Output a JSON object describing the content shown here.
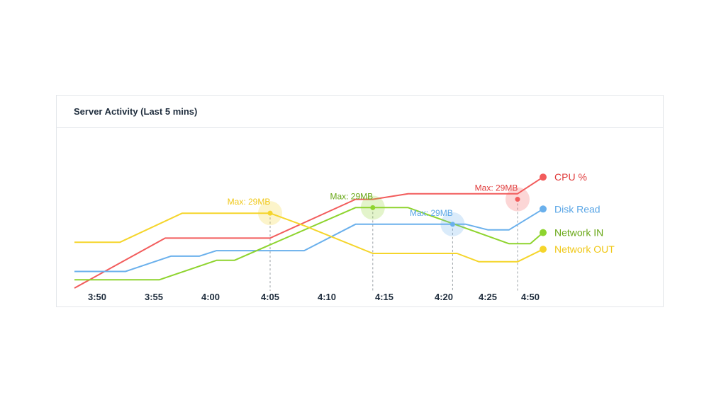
{
  "card": {
    "title": "Server Activity (Last 5 mins)"
  },
  "chart_data": {
    "type": "line",
    "title": "Server Activity (Last 5 mins)",
    "categories": [
      "3:50",
      "3:55",
      "4:00",
      "4:05",
      "4:10",
      "4:15",
      "4:20",
      "4:25",
      "4:50"
    ],
    "ylim": [
      0,
      100
    ],
    "grid": false,
    "legend": "right",
    "series": [
      {
        "name": "CPU %",
        "color": "#f25c5c",
        "points": [
          [
            -0.4,
            0
          ],
          [
            1.2,
            36
          ],
          [
            3.0,
            36
          ],
          [
            4.5,
            64
          ],
          [
            4.8,
            64
          ],
          [
            5.4,
            68
          ],
          [
            7.7,
            68
          ],
          [
            8.3,
            80
          ]
        ],
        "marker": {
          "x": 7.7,
          "y": 64,
          "label": "Max: 29MB"
        }
      },
      {
        "name": "Disk Read",
        "color": "#6ab0ec",
        "points": [
          [
            -0.4,
            12
          ],
          [
            0.5,
            12
          ],
          [
            1.3,
            23
          ],
          [
            1.8,
            23
          ],
          [
            2.1,
            27
          ],
          [
            3.6,
            27
          ],
          [
            4.5,
            46
          ],
          [
            6.5,
            46
          ],
          [
            7.0,
            42
          ],
          [
            7.5,
            42
          ],
          [
            8.3,
            57
          ]
        ],
        "marker": {
          "x": 6.2,
          "y": 46,
          "label": "Max: 29MB"
        }
      },
      {
        "name": "Network IN",
        "color": "#8ed42e",
        "points": [
          [
            -0.4,
            6
          ],
          [
            1.1,
            6
          ],
          [
            2.1,
            20
          ],
          [
            2.4,
            20
          ],
          [
            4.5,
            58
          ],
          [
            5.4,
            58
          ],
          [
            7.5,
            32
          ],
          [
            8.0,
            32
          ],
          [
            8.3,
            40
          ]
        ],
        "marker": {
          "x": 4.8,
          "y": 58,
          "label": "Max: 29MB"
        }
      },
      {
        "name": "Network OUT",
        "color": "#f5d52b",
        "points": [
          [
            -0.4,
            33
          ],
          [
            0.4,
            33
          ],
          [
            1.5,
            54
          ],
          [
            3.0,
            54
          ],
          [
            3.6,
            45
          ],
          [
            4.8,
            25
          ],
          [
            6.3,
            25
          ],
          [
            6.8,
            19
          ],
          [
            7.7,
            19
          ],
          [
            8.3,
            28
          ]
        ],
        "marker": {
          "x": 3.0,
          "y": 54,
          "label": "Max: 29MB"
        }
      }
    ]
  },
  "legend_colors": {
    "CPU %": "#e03b3b",
    "Disk Read": "#5aa6e6",
    "Network IN": "#6aa818",
    "Network OUT": "#f0c818"
  }
}
